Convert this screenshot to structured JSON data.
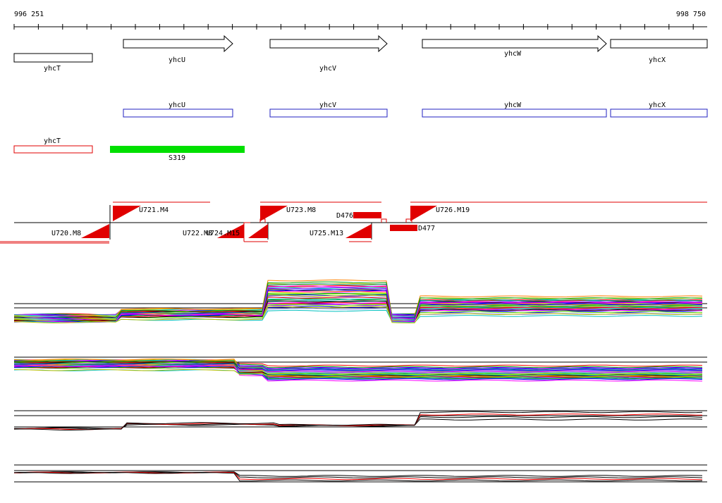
{
  "ruler": {
    "start": "996 251",
    "end": "998 750"
  },
  "gene_arrows": [
    "yhcT",
    "yhcU",
    "yhcV",
    "yhcW",
    "yhcX"
  ],
  "gene_boxes": [
    "yhcU",
    "yhcV",
    "yhcW",
    "yhcX"
  ],
  "red_gene": "yhcT",
  "segment": "S319",
  "transcripts": [
    "U721.M4",
    "U723.M8",
    "U726.M19",
    "U720.M8",
    "U722.M8",
    "U724.M15",
    "U725.M13"
  ],
  "peaks": [
    "D476",
    "D477"
  ]
}
